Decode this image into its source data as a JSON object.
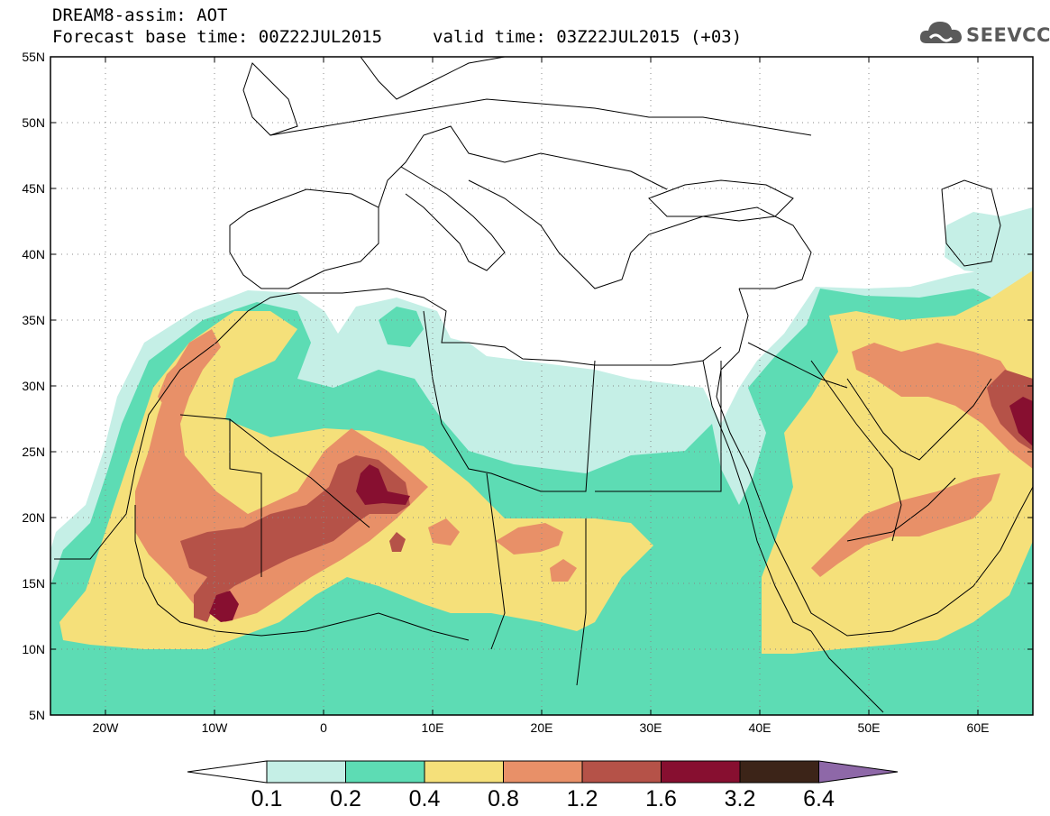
{
  "header": {
    "line1": "DREAM8-assim: AOT",
    "line2": "Forecast base time: 00Z22JUL2015",
    "valid": "valid time: 03Z22JUL2015 (+03)"
  },
  "logo": {
    "text": "SEEVCCC",
    "icon": "cloud-icon"
  },
  "map": {
    "lon_range": [
      -25,
      65
    ],
    "lat_range": [
      5,
      55
    ],
    "lat_ticks": [
      "5N",
      "10N",
      "15N",
      "20N",
      "25N",
      "30N",
      "35N",
      "40N",
      "45N",
      "50N",
      "55N"
    ],
    "lon_ticks": [
      "20W",
      "10W",
      "0",
      "10E",
      "20E",
      "30E",
      "40E",
      "50E",
      "60E"
    ],
    "gridlines": "dotted"
  },
  "colorbar": {
    "levels": [
      "0.1",
      "0.2",
      "0.4",
      "0.8",
      "1.2",
      "1.6",
      "3.2",
      "6.4"
    ],
    "colors": [
      "#c5efe6",
      "#5ddcb4",
      "#f5e07a",
      "#e89068",
      "#b55248",
      "#870f30",
      "#3c2418"
    ],
    "under_color": "#ffffff",
    "over_color": "#8e68a8"
  }
}
